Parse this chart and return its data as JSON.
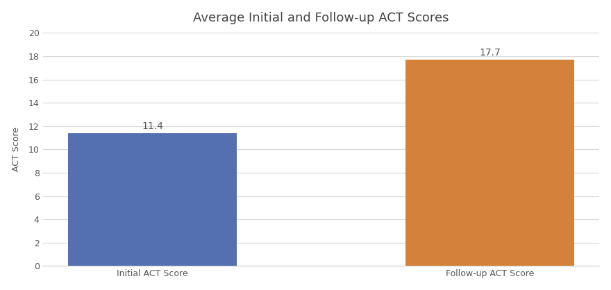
{
  "categories": [
    "Initial ACT Score",
    "Follow-up ACT Score"
  ],
  "values": [
    11.4,
    17.7
  ],
  "bar_colors": [
    "#5470b0",
    "#d4823a"
  ],
  "title": "Average Initial and Follow-up ACT Scores",
  "ylabel": "ACT Score",
  "ylim": [
    0,
    20
  ],
  "yticks": [
    0,
    2,
    4,
    6,
    8,
    10,
    12,
    14,
    16,
    18,
    20
  ],
  "value_labels": [
    "11.4",
    "17.7"
  ],
  "background_color": "#ffffff",
  "grid_color": "#d8d8d8",
  "title_fontsize": 13,
  "label_fontsize": 9,
  "tick_fontsize": 9,
  "annotation_fontsize": 10
}
